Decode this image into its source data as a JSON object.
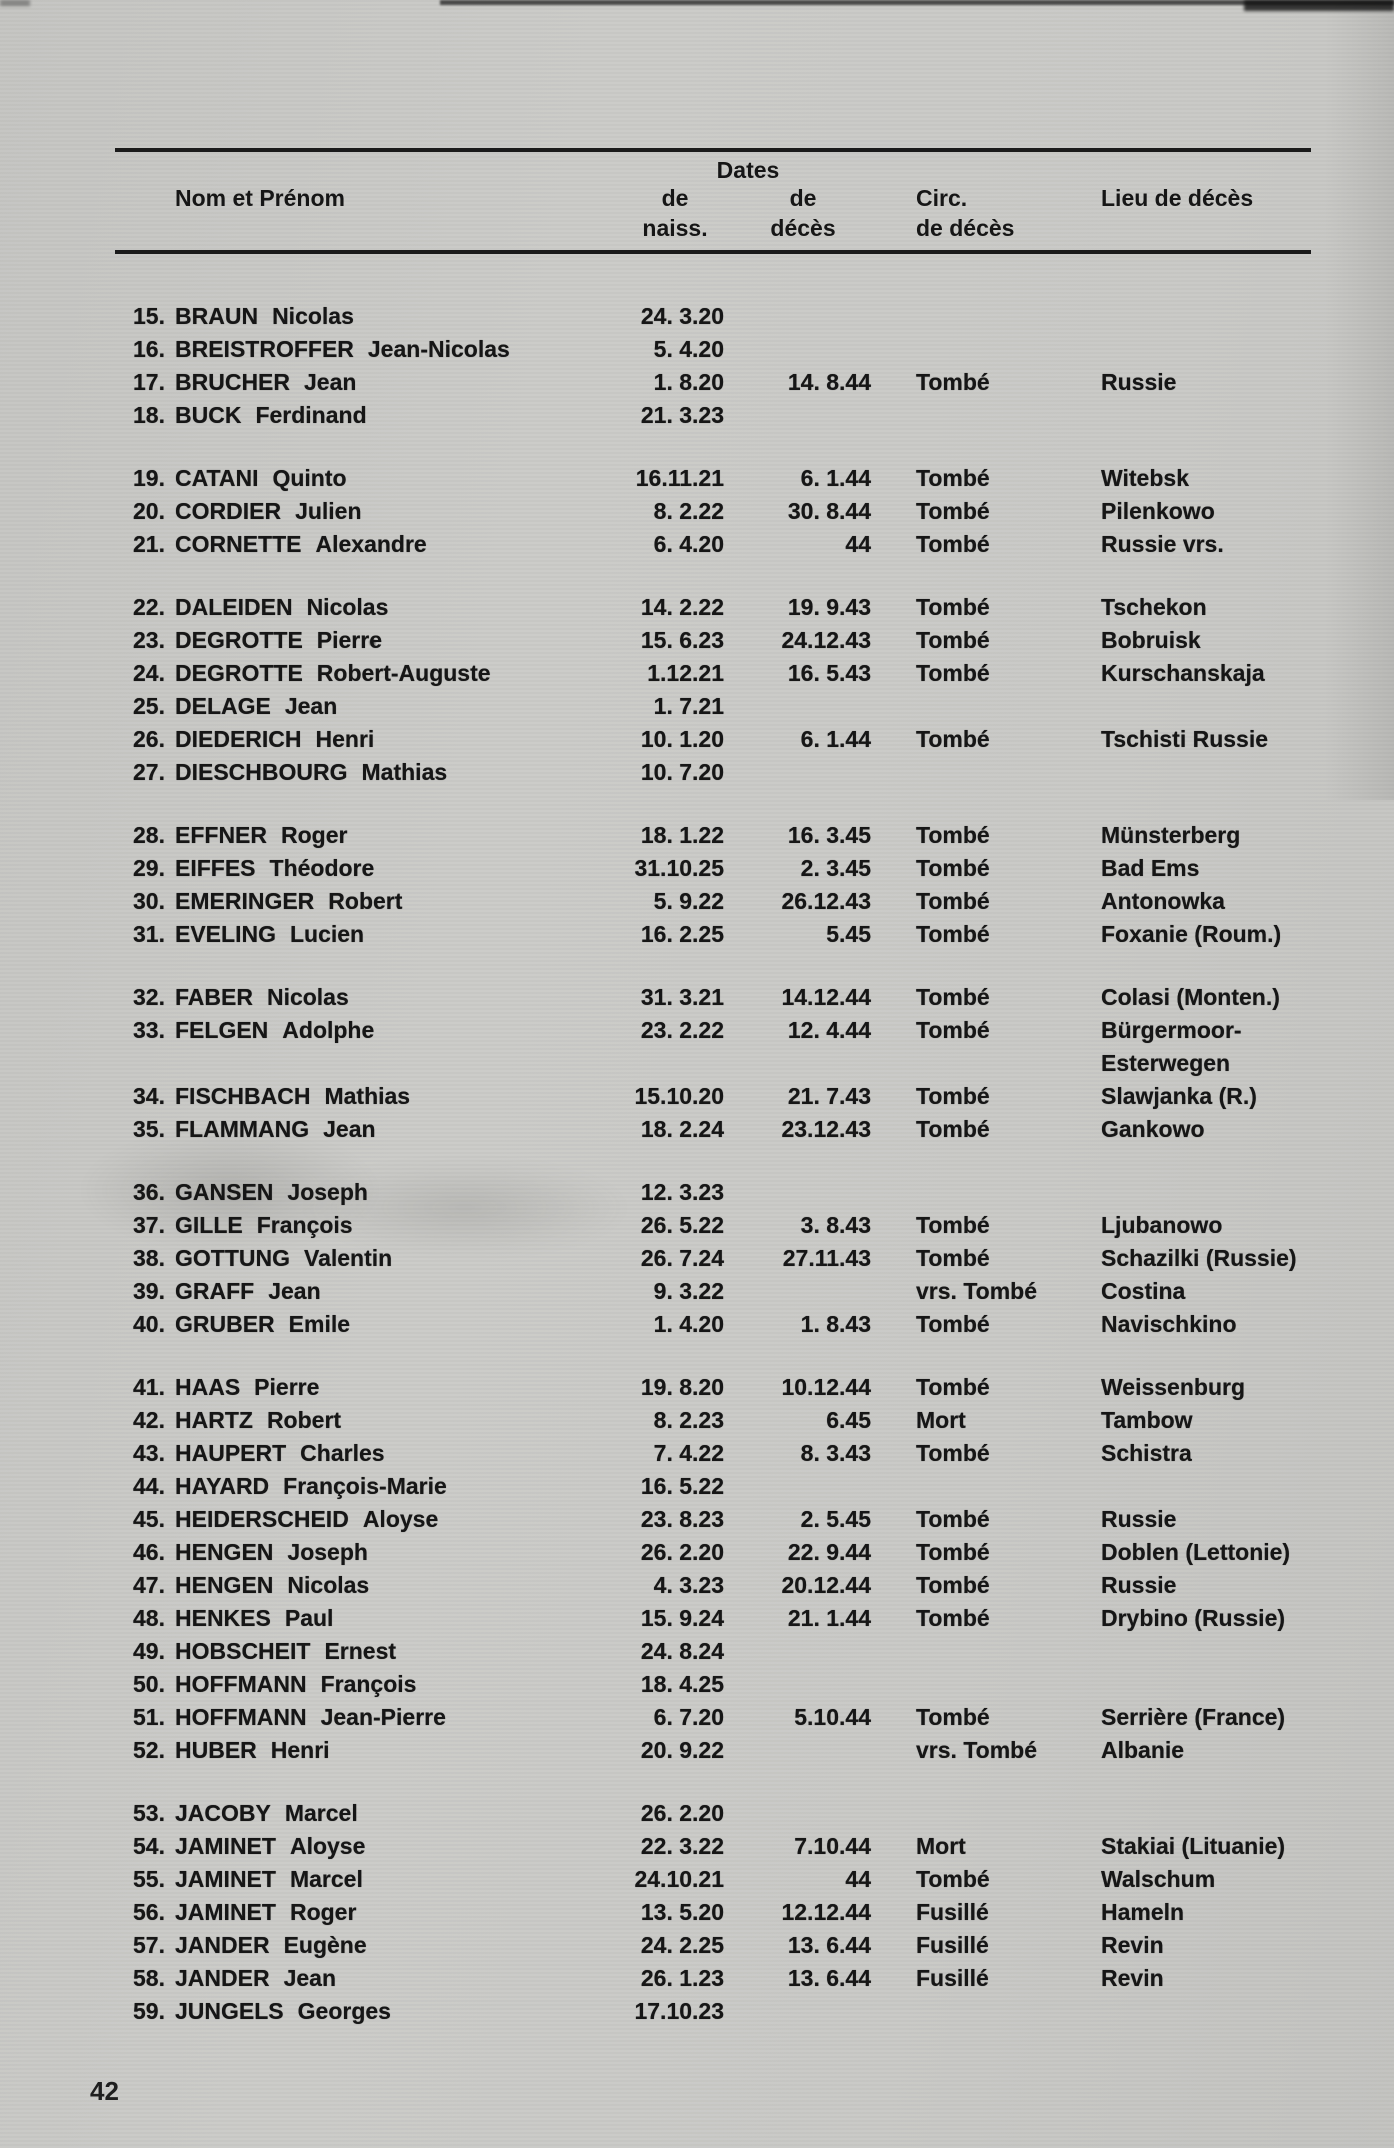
{
  "document": {
    "page_number": "42",
    "table": {
      "header": {
        "name_col": "Nom et Prénom",
        "dates_group": "Dates",
        "birth_col_line1": "de",
        "birth_col_line2": "naiss.",
        "death_col_line1": "de",
        "death_col_line2": "décès",
        "circ_col_line1": "Circ.",
        "circ_col_line2": "de décès",
        "place_col": "Lieu de décès"
      },
      "rows": [
        {
          "group": 0,
          "num": "15.",
          "surname": "BRAUN",
          "given": "Nicolas",
          "birth": "24. 3.20",
          "death": "",
          "circ": "",
          "place": ""
        },
        {
          "group": 0,
          "num": "16.",
          "surname": "BREISTROFFER",
          "given": "Jean-Nicolas",
          "birth": "5. 4.20",
          "death": "",
          "circ": "",
          "place": ""
        },
        {
          "group": 0,
          "num": "17.",
          "surname": "BRUCHER",
          "given": "Jean",
          "birth": "1. 8.20",
          "death": "14. 8.44",
          "circ": "Tombé",
          "place": "Russie"
        },
        {
          "group": 0,
          "num": "18.",
          "surname": "BUCK",
          "given": "Ferdinand",
          "birth": "21. 3.23",
          "death": "",
          "circ": "",
          "place": ""
        },
        {
          "group": 1,
          "num": "19.",
          "surname": "CATANI",
          "given": "Quinto",
          "birth": "16.11.21",
          "death": "6. 1.44",
          "circ": "Tombé",
          "place": "Witebsk"
        },
        {
          "group": 1,
          "num": "20.",
          "surname": "CORDIER",
          "given": "Julien",
          "birth": "8. 2.22",
          "death": "30. 8.44",
          "circ": "Tombé",
          "place": "Pilenkowo"
        },
        {
          "group": 1,
          "num": "21.",
          "surname": "CORNETTE",
          "given": "Alexandre",
          "birth": "6. 4.20",
          "death": "44",
          "circ": "Tombé",
          "place": "Russie vrs."
        },
        {
          "group": 2,
          "num": "22.",
          "surname": "DALEIDEN",
          "given": "Nicolas",
          "birth": "14. 2.22",
          "death": "19. 9.43",
          "circ": "Tombé",
          "place": "Tschekon"
        },
        {
          "group": 2,
          "num": "23.",
          "surname": "DEGROTTE",
          "given": "Pierre",
          "birth": "15. 6.23",
          "death": "24.12.43",
          "circ": "Tombé",
          "place": "Bobruisk"
        },
        {
          "group": 2,
          "num": "24.",
          "surname": "DEGROTTE",
          "given": "Robert-Auguste",
          "birth": "1.12.21",
          "death": "16. 5.43",
          "circ": "Tombé",
          "place": "Kurschanskaja"
        },
        {
          "group": 2,
          "num": "25.",
          "surname": "DELAGE",
          "given": "Jean",
          "birth": "1. 7.21",
          "death": "",
          "circ": "",
          "place": ""
        },
        {
          "group": 2,
          "num": "26.",
          "surname": "DIEDERICH",
          "given": "Henri",
          "birth": "10. 1.20",
          "death": "6. 1.44",
          "circ": "Tombé",
          "place": "Tschisti Russie"
        },
        {
          "group": 2,
          "num": "27.",
          "surname": "DIESCHBOURG",
          "given": "Mathias",
          "birth": "10. 7.20",
          "death": "",
          "circ": "",
          "place": ""
        },
        {
          "group": 3,
          "num": "28.",
          "surname": "EFFNER",
          "given": "Roger",
          "birth": "18. 1.22",
          "death": "16. 3.45",
          "circ": "Tombé",
          "place": "Münsterberg"
        },
        {
          "group": 3,
          "num": "29.",
          "surname": "EIFFES",
          "given": "Théodore",
          "birth": "31.10.25",
          "death": "2. 3.45",
          "circ": "Tombé",
          "place": "Bad Ems"
        },
        {
          "group": 3,
          "num": "30.",
          "surname": "EMERINGER",
          "given": "Robert",
          "birth": "5. 9.22",
          "death": "26.12.43",
          "circ": "Tombé",
          "place": "Antonowka"
        },
        {
          "group": 3,
          "num": "31.",
          "surname": "EVELING",
          "given": "Lucien",
          "birth": "16. 2.25",
          "death": "5.45",
          "circ": "Tombé",
          "place": "Foxanie (Roum.)"
        },
        {
          "group": 4,
          "num": "32.",
          "surname": "FABER",
          "given": "Nicolas",
          "birth": "31. 3.21",
          "death": "14.12.44",
          "circ": "Tombé",
          "place": "Colasi (Monten.)"
        },
        {
          "group": 4,
          "num": "33.",
          "surname": "FELGEN",
          "given": "Adolphe",
          "birth": "23. 2.22",
          "death": "12. 4.44",
          "circ": "Tombé",
          "place": "Bürgermoor-",
          "place2": "Esterwegen"
        },
        {
          "group": 4,
          "num": "34.",
          "surname": "FISCHBACH",
          "given": "Mathias",
          "birth": "15.10.20",
          "death": "21. 7.43",
          "circ": "Tombé",
          "place": "Slawjanka (R.)"
        },
        {
          "group": 4,
          "num": "35.",
          "surname": "FLAMMANG",
          "given": "Jean",
          "birth": "18. 2.24",
          "death": "23.12.43",
          "circ": "Tombé",
          "place": "Gankowo"
        },
        {
          "group": 5,
          "num": "36.",
          "surname": "GANSEN",
          "given": "Joseph",
          "birth": "12. 3.23",
          "death": "",
          "circ": "",
          "place": ""
        },
        {
          "group": 5,
          "num": "37.",
          "surname": "GILLE",
          "given": "François",
          "birth": "26. 5.22",
          "death": "3. 8.43",
          "circ": "Tombé",
          "place": "Ljubanowo"
        },
        {
          "group": 5,
          "num": "38.",
          "surname": "GOTTUNG",
          "given": "Valentin",
          "birth": "26. 7.24",
          "death": "27.11.43",
          "circ": "Tombé",
          "place": "Schazilki (Russie)"
        },
        {
          "group": 5,
          "num": "39.",
          "surname": "GRAFF",
          "given": "Jean",
          "birth": "9. 3.22",
          "death": "",
          "circ": "vrs. Tombé",
          "place": "Costina"
        },
        {
          "group": 5,
          "num": "40.",
          "surname": "GRUBER",
          "given": "Emile",
          "birth": "1. 4.20",
          "death": "1. 8.43",
          "circ": "Tombé",
          "place": "Navischkino"
        },
        {
          "group": 6,
          "num": "41.",
          "surname": "HAAS",
          "given": "Pierre",
          "birth": "19. 8.20",
          "death": "10.12.44",
          "circ": "Tombé",
          "place": "Weissenburg"
        },
        {
          "group": 6,
          "num": "42.",
          "surname": "HARTZ",
          "given": "Robert",
          "birth": "8. 2.23",
          "death": "6.45",
          "circ": "Mort",
          "place": "Tambow"
        },
        {
          "group": 6,
          "num": "43.",
          "surname": "HAUPERT",
          "given": "Charles",
          "birth": "7. 4.22",
          "death": "8. 3.43",
          "circ": "Tombé",
          "place": "Schistra"
        },
        {
          "group": 6,
          "num": "44.",
          "surname": "HAYARD",
          "given": "François-Marie",
          "birth": "16. 5.22",
          "death": "",
          "circ": "",
          "place": ""
        },
        {
          "group": 6,
          "num": "45.",
          "surname": "HEIDERSCHEID",
          "given": "Aloyse",
          "birth": "23. 8.23",
          "death": "2. 5.45",
          "circ": "Tombé",
          "place": "Russie"
        },
        {
          "group": 6,
          "num": "46.",
          "surname": "HENGEN",
          "given": "Joseph",
          "birth": "26. 2.20",
          "death": "22. 9.44",
          "circ": "Tombé",
          "place": "Doblen (Lettonie)"
        },
        {
          "group": 6,
          "num": "47.",
          "surname": "HENGEN",
          "given": "Nicolas",
          "birth": "4. 3.23",
          "death": "20.12.44",
          "circ": "Tombé",
          "place": "Russie"
        },
        {
          "group": 6,
          "num": "48.",
          "surname": "HENKES",
          "given": "Paul",
          "birth": "15. 9.24",
          "death": "21. 1.44",
          "circ": "Tombé",
          "place": "Drybino (Russie)"
        },
        {
          "group": 6,
          "num": "49.",
          "surname": "HOBSCHEIT",
          "given": "Ernest",
          "birth": "24. 8.24",
          "death": "",
          "circ": "",
          "place": ""
        },
        {
          "group": 6,
          "num": "50.",
          "surname": "HOFFMANN",
          "given": "François",
          "birth": "18. 4.25",
          "death": "",
          "circ": "",
          "place": ""
        },
        {
          "group": 6,
          "num": "51.",
          "surname": "HOFFMANN",
          "given": "Jean-Pierre",
          "birth": "6. 7.20",
          "death": "5.10.44",
          "circ": "Tombé",
          "place": "Serrière (France)"
        },
        {
          "group": 6,
          "num": "52.",
          "surname": "HUBER",
          "given": "Henri",
          "birth": "20. 9.22",
          "death": "",
          "circ": "vrs. Tombé",
          "place": "Albanie"
        },
        {
          "group": 7,
          "num": "53.",
          "surname": "JACOBY",
          "given": "Marcel",
          "birth": "26. 2.20",
          "death": "",
          "circ": "",
          "place": ""
        },
        {
          "group": 7,
          "num": "54.",
          "surname": "JAMINET",
          "given": "Aloyse",
          "birth": "22. 3.22",
          "death": "7.10.44",
          "circ": "Mort",
          "place": "Stakiai (Lituanie)"
        },
        {
          "group": 7,
          "num": "55.",
          "surname": "JAMINET",
          "given": "Marcel",
          "birth": "24.10.21",
          "death": "44",
          "circ": "Tombé",
          "place": "Walschum"
        },
        {
          "group": 7,
          "num": "56.",
          "surname": "JAMINET",
          "given": "Roger",
          "birth": "13. 5.20",
          "death": "12.12.44",
          "circ": "Fusillé",
          "place": "Hameln"
        },
        {
          "group": 7,
          "num": "57.",
          "surname": "JANDER",
          "given": "Eugène",
          "birth": "24. 2.25",
          "death": "13. 6.44",
          "circ": "Fusillé",
          "place": "Revin"
        },
        {
          "group": 7,
          "num": "58.",
          "surname": "JANDER",
          "given": "Jean",
          "birth": "26. 1.23",
          "death": "13. 6.44",
          "circ": "Fusillé",
          "place": "Revin"
        },
        {
          "group": 7,
          "num": "59.",
          "surname": "JUNGELS",
          "given": "Georges",
          "birth": "17.10.23",
          "death": "",
          "circ": "",
          "place": ""
        }
      ]
    }
  }
}
